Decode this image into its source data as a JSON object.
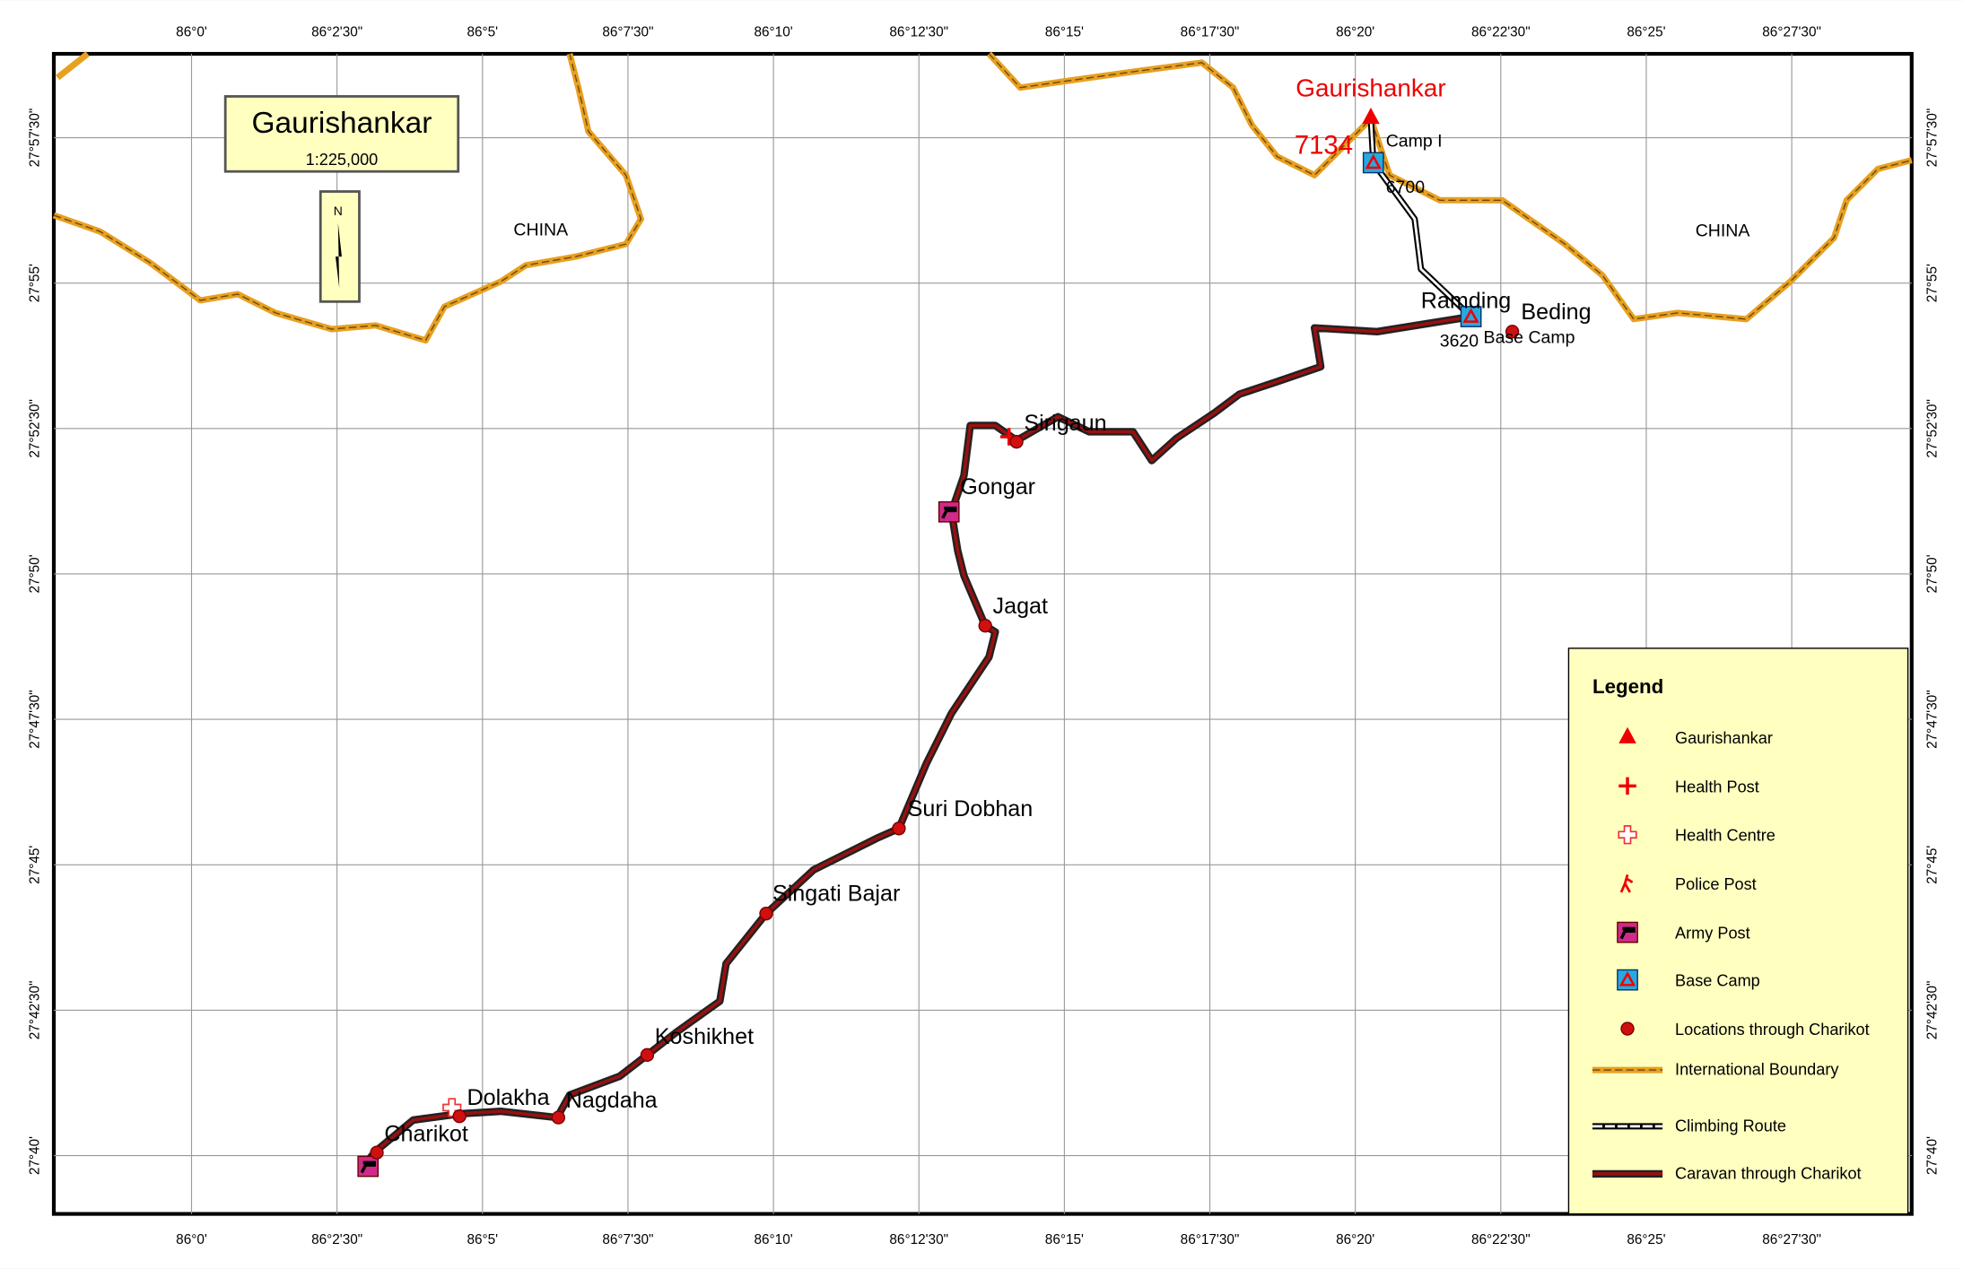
{
  "map": {
    "title": "Gaurishankar",
    "scale": "1:225,000",
    "north": "N"
  },
  "grid": {
    "lon_labels": [
      "86°0'",
      "86°2'30\"",
      "86°5'",
      "86°7'30\"",
      "86°10'",
      "86°12'30\"",
      "86°15'",
      "86°17'30\"",
      "86°20'",
      "86°22'30\"",
      "86°25'",
      "86°27'30\""
    ],
    "lat_labels": [
      "27°57'30\"",
      "27°55'",
      "27°52'30\"",
      "27°50'",
      "27°47'30\"",
      "27°45'",
      "27°42'30\"",
      "27°40'"
    ]
  },
  "regions": [
    "CHINA",
    "CHINA"
  ],
  "peak": {
    "label": "Gaurishankar",
    "elevation": "7134"
  },
  "camps": [
    {
      "label": "Camp I",
      "elevation": "6700"
    },
    {
      "label": "Ramding",
      "elevation": "3620"
    }
  ],
  "places": [
    "Beding",
    "Base Camp",
    "Sirigaun",
    "Gongar",
    "Jagat",
    "Suri Dobhan",
    "Singati Bajar",
    "Koshikhet",
    "Dolakha",
    "Nagdaha",
    "Charikot"
  ],
  "legend": {
    "title": "Legend",
    "items": [
      "Gaurishankar",
      "Health Post",
      "Health Centre",
      "Police Post",
      "Army Post",
      "Base Camp",
      "Locations through Charikot",
      "International Boundary",
      "Climbing Route",
      "Caravan through Charikot"
    ]
  }
}
